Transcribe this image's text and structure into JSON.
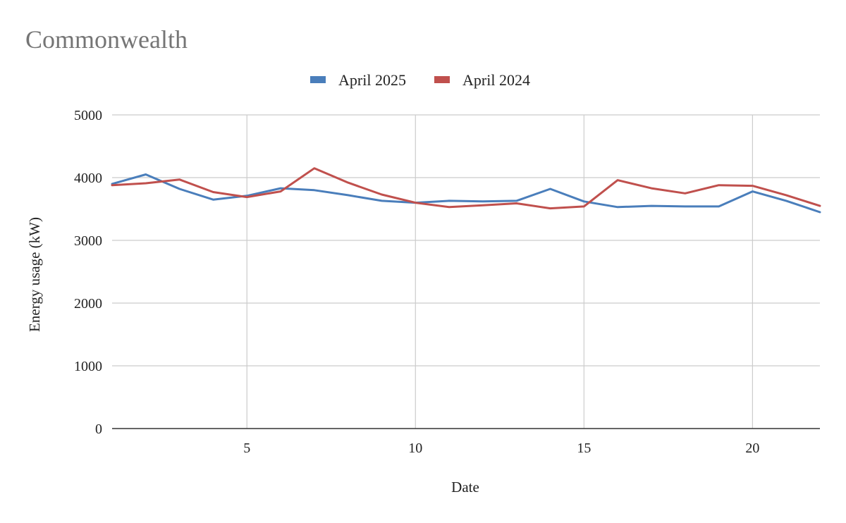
{
  "chart_data": {
    "type": "line",
    "title": "Commonwealth",
    "xlabel": "Date",
    "ylabel": "Energy usage (kW)",
    "x": [
      1,
      2,
      3,
      4,
      5,
      6,
      7,
      8,
      9,
      10,
      11,
      12,
      13,
      14,
      15,
      16,
      17,
      18,
      19,
      20,
      21,
      22
    ],
    "xlim": [
      1,
      22
    ],
    "ylim": [
      0,
      5000
    ],
    "xticks": [
      5,
      10,
      15,
      20
    ],
    "yticks": [
      0,
      1000,
      2000,
      3000,
      4000,
      5000
    ],
    "grid": true,
    "legend_position": "top",
    "series": [
      {
        "name": "April 2025",
        "color": "#4a7ebb",
        "values": [
          3900,
          4050,
          3820,
          3650,
          3710,
          3830,
          3800,
          3720,
          3630,
          3600,
          3630,
          3620,
          3630,
          3820,
          3620,
          3530,
          3550,
          3540,
          3540,
          3780,
          3630,
          3450
        ]
      },
      {
        "name": "April 2024",
        "color": "#c0504d",
        "values": [
          3880,
          3910,
          3970,
          3770,
          3690,
          3780,
          4150,
          3920,
          3730,
          3600,
          3530,
          3560,
          3590,
          3510,
          3540,
          3960,
          3830,
          3750,
          3880,
          3870,
          3720,
          3550
        ]
      }
    ]
  }
}
